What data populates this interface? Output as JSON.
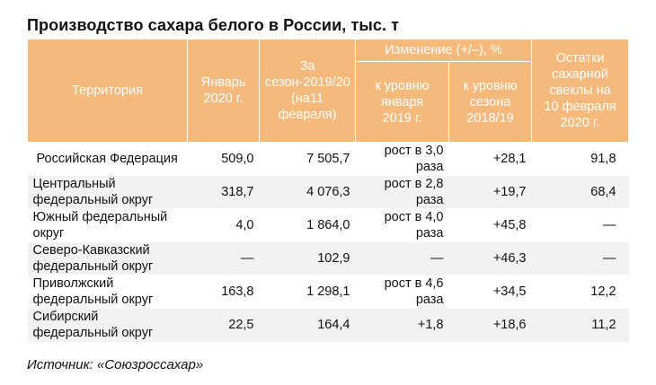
{
  "title": "Производство сахара белого в России, тыс. т",
  "headers": {
    "territory": "Территория",
    "jan2020": "Январь 2020 г.",
    "season": "За сезон-2019/20 (на11 февраля)",
    "change_group": "Изменение (+/–), %",
    "vs_jan2019": "к уровню января 2019 г.",
    "vs_season": "к уровню сезона 2018/19",
    "remains": "Остатки сахарной свеклы на 10 февраля 2020 г."
  },
  "rows": [
    {
      "territory": "Российская Федерация",
      "jan2020": "509,0",
      "season": "7 505,7",
      "vs_jan2019": "рост в 3,0 раза",
      "vs_season": "+28,1",
      "remains": "91,8"
    },
    {
      "territory": "Центральный федеральный округ",
      "jan2020": "318,7",
      "season": "4 076,3",
      "vs_jan2019": "рост в 2,8 раза",
      "vs_season": "+19,7",
      "remains": "68,4"
    },
    {
      "territory": "Южный федеральный округ",
      "jan2020": "4,0",
      "season": "1 864,0",
      "vs_jan2019": "рост в 4,0 раза",
      "vs_season": "+45,8",
      "remains": "—"
    },
    {
      "territory": "Северо-Кавказский федеральный округ",
      "jan2020": "—",
      "season": "102,9",
      "vs_jan2019": "—",
      "vs_season": "+46,3",
      "remains": "—"
    },
    {
      "territory": "Приволжский федеральный округ",
      "jan2020": "163,8",
      "season": "1 298,1",
      "vs_jan2019": "рост в 4,6 раза",
      "vs_season": "+34,5",
      "remains": "12,2"
    },
    {
      "territory": "Сибирский федеральный округ",
      "jan2020": "22,5",
      "season": "164,4",
      "vs_jan2019": "+1,8",
      "vs_season": "+18,6",
      "remains": "11,2"
    }
  ],
  "source": "Источник: «Союзроссахар»",
  "colors": {
    "header_bg": "#f5b97c",
    "stripe_bg": "#f2f2f2"
  }
}
